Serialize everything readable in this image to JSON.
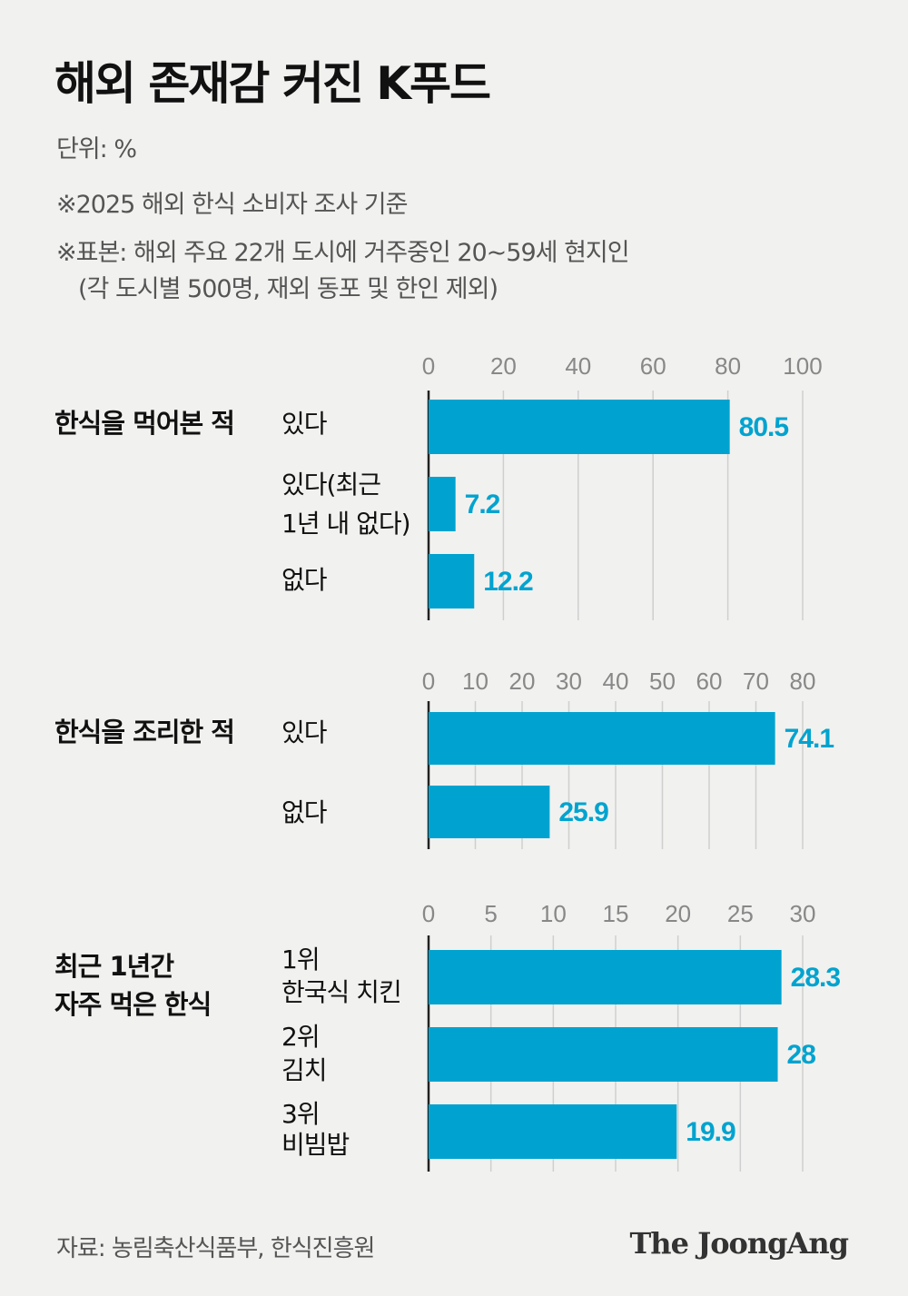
{
  "header": {
    "title": "해외 존재감 커진 K푸드",
    "unit": "단위: %",
    "note1": "※2025 해외 한식 소비자 조사 기준",
    "note2": "※표본: 해외 주요 22개 도시에 거주중인 20~59세 현지인",
    "note3": "(각 도시별 500명, 재외 동포 및 한인 제외)"
  },
  "colors": {
    "bar": "#00a3cf",
    "value_label": "#00a3cf",
    "axis": "#222222",
    "grid": "#cfcfcf"
  },
  "chart_data": [
    {
      "type": "bar",
      "title": "한식을 먹어본 적",
      "categories": [
        [
          "있다"
        ],
        [
          "있다(최근",
          "1년 내 없다)"
        ],
        [
          "없다"
        ]
      ],
      "values": [
        80.5,
        7.2,
        12.2
      ],
      "value_labels": [
        "80.5",
        "7.2",
        "12.2"
      ],
      "ticks": [
        0,
        20,
        40,
        60,
        80,
        100
      ],
      "xlim": [
        0,
        100
      ],
      "grid": true
    },
    {
      "type": "bar",
      "title": "한식을 조리한 적",
      "categories": [
        [
          "있다"
        ],
        [
          "없다"
        ]
      ],
      "values": [
        74.1,
        25.9
      ],
      "value_labels": [
        "74.1",
        "25.9"
      ],
      "ticks": [
        0,
        10,
        20,
        30,
        40,
        50,
        60,
        70,
        80
      ],
      "xlim": [
        0,
        80
      ],
      "grid": true
    },
    {
      "type": "bar",
      "title": "최근 1년간 자주 먹은 한식",
      "title_lines": [
        "최근 1년간",
        "자주 먹은 한식"
      ],
      "categories": [
        [
          "1위",
          "한국식 치킨"
        ],
        [
          "2위",
          "김치"
        ],
        [
          "3위",
          "비빔밥"
        ]
      ],
      "values": [
        28.3,
        28,
        19.9
      ],
      "value_labels": [
        "28.3",
        "28",
        "19.9"
      ],
      "ticks": [
        0,
        5,
        10,
        15,
        20,
        25,
        30
      ],
      "xlim": [
        0,
        30
      ],
      "grid": true
    }
  ],
  "footer": {
    "source": "자료: 농림축산식품부, 한식진흥원",
    "logo": "The JoongAng"
  }
}
